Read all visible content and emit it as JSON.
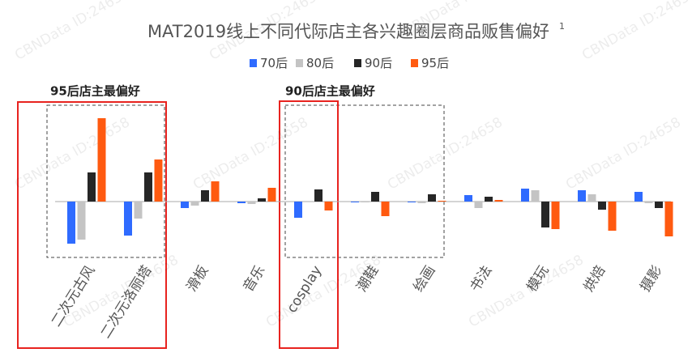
{
  "chart_data": {
    "type": "bar",
    "title": "MAT2019线上不同代际店主各兴趣圈层商品贩售偏好",
    "title_note": "1",
    "watermark": "CBNData ID:24658",
    "annotations": [
      "95后店主最偏好",
      "90后店主最偏好"
    ],
    "categories": [
      "二次元古风",
      "二次元洛丽塔",
      "滑板",
      "音乐",
      "cosplay",
      "潮鞋",
      "绘画",
      "书法",
      "模玩",
      "烘焙",
      "摄影"
    ],
    "series": [
      {
        "name": "70后",
        "color": "#2f6bff",
        "values": [
          -52,
          -42,
          -8,
          -2,
          -20,
          -1,
          -1,
          8,
          16,
          14,
          12
        ]
      },
      {
        "name": "80后",
        "color": "#c4c4c4",
        "values": [
          -47,
          -21,
          -5,
          -3,
          0,
          -1,
          -2,
          -8,
          14,
          9,
          -2
        ]
      },
      {
        "name": "90后",
        "color": "#262626",
        "values": [
          36,
          36,
          14,
          4,
          15,
          12,
          9,
          6,
          -32,
          -10,
          -8
        ]
      },
      {
        "name": "95后",
        "color": "#ff5a10",
        "values": [
          103,
          52,
          25,
          17,
          -11,
          -18,
          1,
          2,
          -34,
          -36,
          -43
        ]
      }
    ],
    "ylim": [
      -60,
      110
    ]
  }
}
